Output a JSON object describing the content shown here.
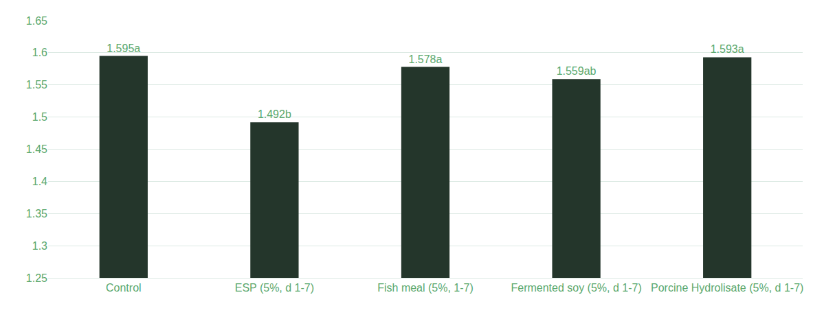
{
  "chart_data": {
    "type": "bar",
    "categories": [
      "Control",
      "ESP (5%, d 1-7)",
      "Fish meal (5%, 1-7)",
      "Fermented soy (5%, d 1-7)",
      "Porcine Hydrolisate (5%, d 1-7)"
    ],
    "values": [
      1.595,
      1.492,
      1.578,
      1.559,
      1.593
    ],
    "value_labels": [
      "1.595a",
      "1.492b",
      "1.578a",
      "1.559ab",
      "1.593a"
    ],
    "color": "#24362b",
    "ylim": [
      1.25,
      1.65
    ],
    "yticks": [
      1.25,
      1.3,
      1.35,
      1.4,
      1.45,
      1.5,
      1.55,
      1.6,
      1.65
    ],
    "grid": true,
    "data_labels": true
  }
}
